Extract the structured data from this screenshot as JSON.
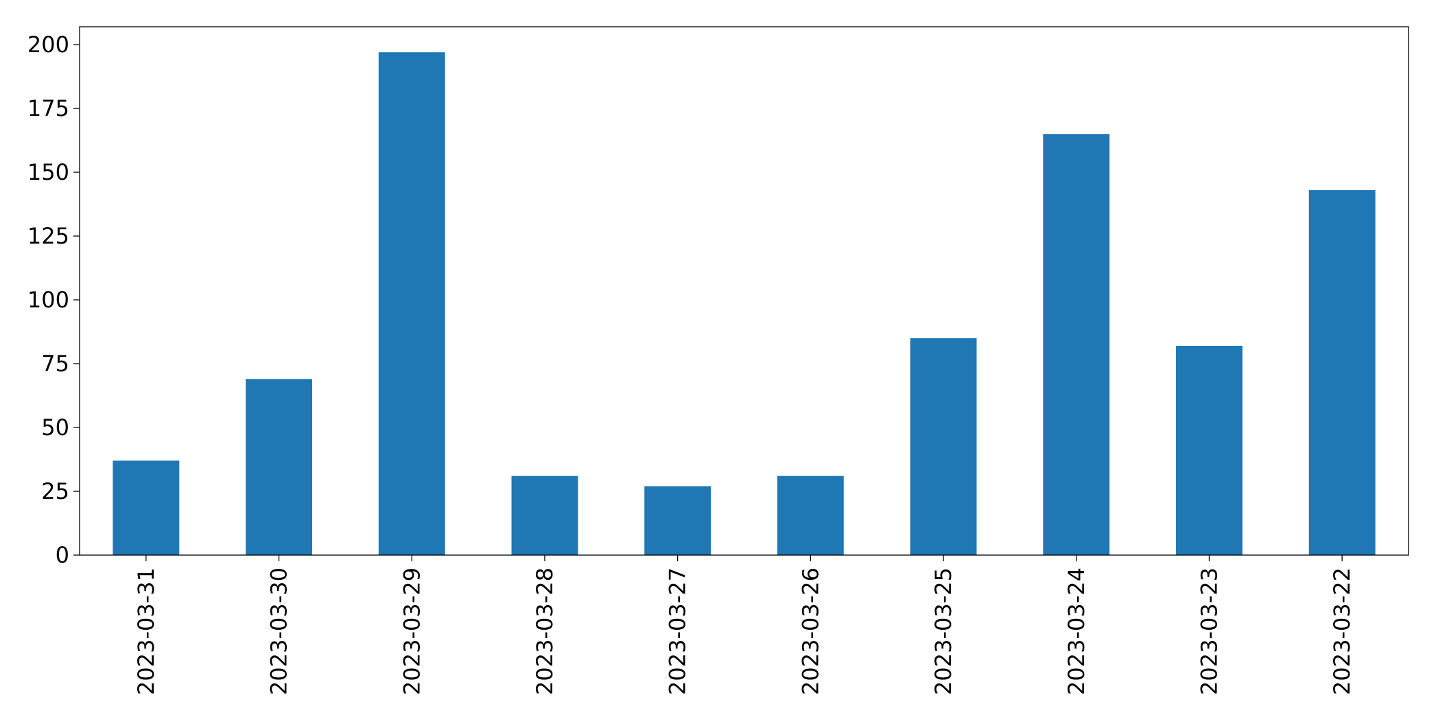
{
  "chart_data": {
    "type": "bar",
    "categories": [
      "2023-03-31",
      "2023-03-30",
      "2023-03-29",
      "2023-03-28",
      "2023-03-27",
      "2023-03-26",
      "2023-03-25",
      "2023-03-24",
      "2023-03-23",
      "2023-03-22"
    ],
    "values": [
      37,
      69,
      197,
      31,
      27,
      31,
      85,
      165,
      82,
      143
    ],
    "color": "#1f77b4",
    "ylim": [
      0,
      207
    ],
    "yticks": [
      0,
      25,
      50,
      75,
      100,
      125,
      150,
      175,
      200
    ],
    "grid": false
  }
}
